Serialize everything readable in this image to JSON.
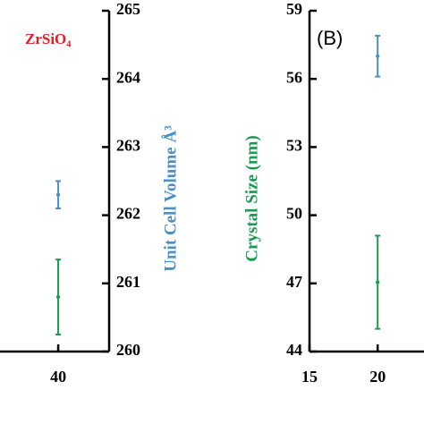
{
  "chart_data": [
    {
      "type": "errorbar",
      "annotation": "ZrSiO₄",
      "y_label": "Unit Cell Volume Å³",
      "xlim": [
        32,
        47
      ],
      "xticks": [
        40
      ],
      "ylim": [
        260,
        265
      ],
      "yticks": [
        260,
        261,
        262,
        263,
        264,
        265
      ],
      "series": [
        {
          "color": "#4a90c8",
          "x": [
            40
          ],
          "values": [
            262.3
          ],
          "errors": [
            0.2
          ]
        },
        {
          "color": "#1a9a50",
          "x": [
            40
          ],
          "values": [
            260.8
          ],
          "errors": [
            0.55
          ]
        }
      ]
    },
    {
      "type": "errorbar",
      "annotation": "(B)",
      "y_label": "Crystal Size (nm)",
      "xlim": [
        15,
        23.4
      ],
      "xticks": [
        15,
        20
      ],
      "ylim": [
        44,
        59
      ],
      "yticks": [
        44,
        47,
        50,
        53,
        56,
        59
      ],
      "series": [
        {
          "color": "#4a90c8",
          "x": [
            20
          ],
          "values": [
            57
          ],
          "errors": [
            0.9
          ]
        },
        {
          "color": "#1a9a50",
          "x": [
            20
          ],
          "values": [
            47.05
          ],
          "errors": [
            2.05
          ]
        }
      ]
    }
  ]
}
